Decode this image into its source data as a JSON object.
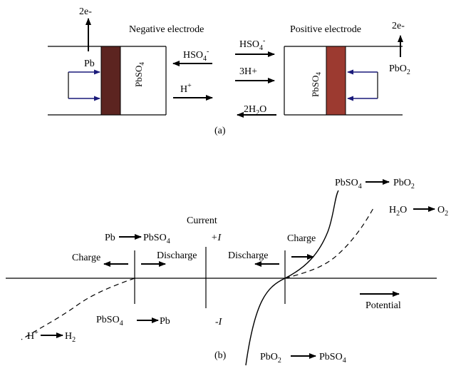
{
  "colors": {
    "ink": "#000000",
    "lead_plate": "#5c2420",
    "oxide_plate": "#9c3a30",
    "inner_arrow": "#1a1a7a"
  },
  "panel_a": {
    "electron_left": "2e-",
    "negative_label": "Negative electrode",
    "lead_label": "Pb",
    "sulfate_neg_label": "PbSO",
    "sulfate_neg_sub": "4",
    "electron_right": "2e-",
    "positive_label": "Positive electrode",
    "oxide_label": "PbO",
    "oxide_sub": "2",
    "sulfate_pos_label": "PbSO",
    "sulfate_pos_sub": "4",
    "bisulfate_left": {
      "base": "HSO",
      "sub": "4",
      "sup": "-"
    },
    "bisulfate_right": {
      "base": "HSO",
      "sub": "4",
      "sup": "-"
    },
    "proton_left": {
      "base": "H",
      "sup": "+"
    },
    "proton_right": "3H+",
    "water": {
      "pre": "2H",
      "sub": "2",
      "post": "O"
    },
    "caption": "(a)"
  },
  "panel_b": {
    "current_label": "Current",
    "plus_i": "+I",
    "minus_i": "-I",
    "neg_top_from": "Pb",
    "neg_top_to": "PbSO",
    "neg_top_to_sub": "4",
    "charge_left": "Charge",
    "discharge_left": "Discharge",
    "neg_bottom_from": "PbSO",
    "neg_bottom_from_sub": "4",
    "neg_bottom_to": "Pb",
    "hydrogen_from": {
      "base": "H",
      "sup": "+"
    },
    "hydrogen_to": {
      "base": "H",
      "sub": "2"
    },
    "discharge_right": "Discharge",
    "charge_right": "Charge",
    "pos_top_from": "PbSO",
    "pos_top_from_sub": "4",
    "pos_top_to": "PbO",
    "pos_top_to_sub": "2",
    "oxygen_from": {
      "pre": "H",
      "sub": "2",
      "post": "O"
    },
    "oxygen_to": {
      "base": "O",
      "sub": "2"
    },
    "pos_bottom_from": "PbO",
    "pos_bottom_from_sub": "2",
    "pos_bottom_to": "PbSO",
    "pos_bottom_to_sub": "4",
    "potential_label": "Potential",
    "caption": "(b)"
  }
}
